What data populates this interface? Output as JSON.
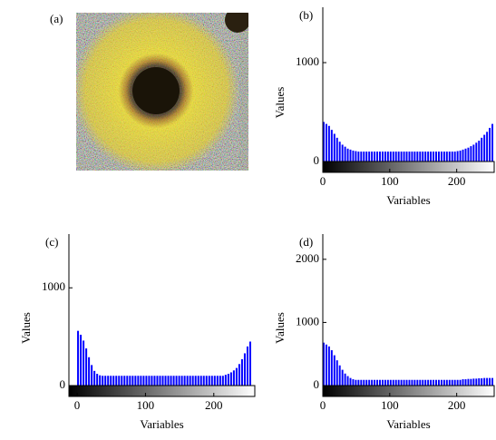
{
  "image_label": "(a)",
  "chart_data": [
    {
      "type": "histogram",
      "label": "(b)",
      "xlabel": "Variables",
      "ylabel": "Values",
      "color": "#0000ff",
      "bins": [
        0,
        4,
        8,
        12,
        16,
        20,
        24,
        28,
        32,
        36,
        40,
        44,
        48,
        52,
        56,
        60,
        64,
        68,
        72,
        76,
        80,
        84,
        88,
        92,
        96,
        100,
        104,
        108,
        112,
        116,
        120,
        124,
        128,
        132,
        136,
        140,
        144,
        148,
        152,
        156,
        160,
        164,
        168,
        172,
        176,
        180,
        184,
        188,
        192,
        196,
        200,
        204,
        208,
        212,
        216,
        220,
        224,
        228,
        232,
        236,
        240,
        244,
        248,
        252,
        256
      ],
      "values": [
        400,
        380,
        360,
        320,
        280,
        240,
        200,
        170,
        150,
        130,
        120,
        110,
        105,
        100,
        100,
        100,
        100,
        100,
        100,
        100,
        100,
        100,
        100,
        100,
        100,
        100,
        100,
        100,
        100,
        100,
        100,
        100,
        100,
        100,
        100,
        100,
        100,
        100,
        100,
        100,
        100,
        100,
        100,
        100,
        100,
        100,
        100,
        100,
        100,
        100,
        105,
        110,
        120,
        130,
        140,
        155,
        170,
        190,
        210,
        240,
        270,
        300,
        340,
        380
      ],
      "xlim": [
        0,
        256
      ],
      "ylim": [
        0,
        1560
      ],
      "xticks": [
        0,
        100,
        200
      ],
      "yticks": [
        0,
        1000
      ]
    },
    {
      "type": "histogram",
      "label": "(c)",
      "xlabel": "Variables",
      "ylabel": "Values",
      "color": "#0000ff",
      "bins": [
        0,
        4,
        8,
        12,
        16,
        20,
        24,
        28,
        32,
        36,
        40,
        44,
        48,
        52,
        56,
        60,
        64,
        68,
        72,
        76,
        80,
        84,
        88,
        92,
        96,
        100,
        104,
        108,
        112,
        116,
        120,
        124,
        128,
        132,
        136,
        140,
        144,
        148,
        152,
        156,
        160,
        164,
        168,
        172,
        176,
        180,
        184,
        188,
        192,
        196,
        200,
        204,
        208,
        212,
        216,
        220,
        224,
        228,
        232,
        236,
        240,
        244,
        248,
        252,
        256
      ],
      "values": [
        560,
        520,
        460,
        380,
        290,
        210,
        150,
        120,
        105,
        100,
        100,
        100,
        100,
        100,
        100,
        100,
        100,
        100,
        100,
        100,
        100,
        100,
        100,
        100,
        100,
        100,
        100,
        100,
        100,
        100,
        100,
        100,
        100,
        100,
        100,
        100,
        100,
        100,
        100,
        100,
        100,
        100,
        100,
        100,
        100,
        100,
        100,
        100,
        100,
        100,
        100,
        100,
        100,
        100,
        110,
        120,
        135,
        155,
        180,
        220,
        270,
        330,
        400,
        450
      ],
      "xlim": [
        -12,
        260
      ],
      "ylim": [
        0,
        1550
      ],
      "xticks": [
        0,
        100,
        200
      ],
      "yticks": [
        0,
        1000
      ]
    },
    {
      "type": "histogram",
      "label": "(d)",
      "xlabel": "Variables",
      "ylabel": "Values",
      "color": "#0000ff",
      "bins": [
        0,
        4,
        8,
        12,
        16,
        20,
        24,
        28,
        32,
        36,
        40,
        44,
        48,
        52,
        56,
        60,
        64,
        68,
        72,
        76,
        80,
        84,
        88,
        92,
        96,
        100,
        104,
        108,
        112,
        116,
        120,
        124,
        128,
        132,
        136,
        140,
        144,
        148,
        152,
        156,
        160,
        164,
        168,
        172,
        176,
        180,
        184,
        188,
        192,
        196,
        200,
        204,
        208,
        212,
        216,
        220,
        224,
        228,
        232,
        236,
        240,
        244,
        248,
        252,
        256
      ],
      "values": [
        680,
        650,
        620,
        560,
        480,
        400,
        320,
        250,
        190,
        150,
        120,
        100,
        90,
        90,
        90,
        90,
        90,
        90,
        90,
        90,
        90,
        90,
        90,
        90,
        90,
        90,
        90,
        90,
        90,
        90,
        90,
        90,
        90,
        90,
        90,
        90,
        90,
        90,
        90,
        90,
        90,
        90,
        90,
        90,
        90,
        90,
        90,
        90,
        90,
        90,
        90,
        90,
        100,
        100,
        105,
        105,
        110,
        110,
        115,
        115,
        120,
        120,
        120,
        120
      ],
      "xlim": [
        0,
        256
      ],
      "ylim": [
        0,
        2400
      ],
      "xticks": [
        0,
        100,
        200
      ],
      "yticks": [
        0,
        1000,
        2000
      ]
    }
  ]
}
